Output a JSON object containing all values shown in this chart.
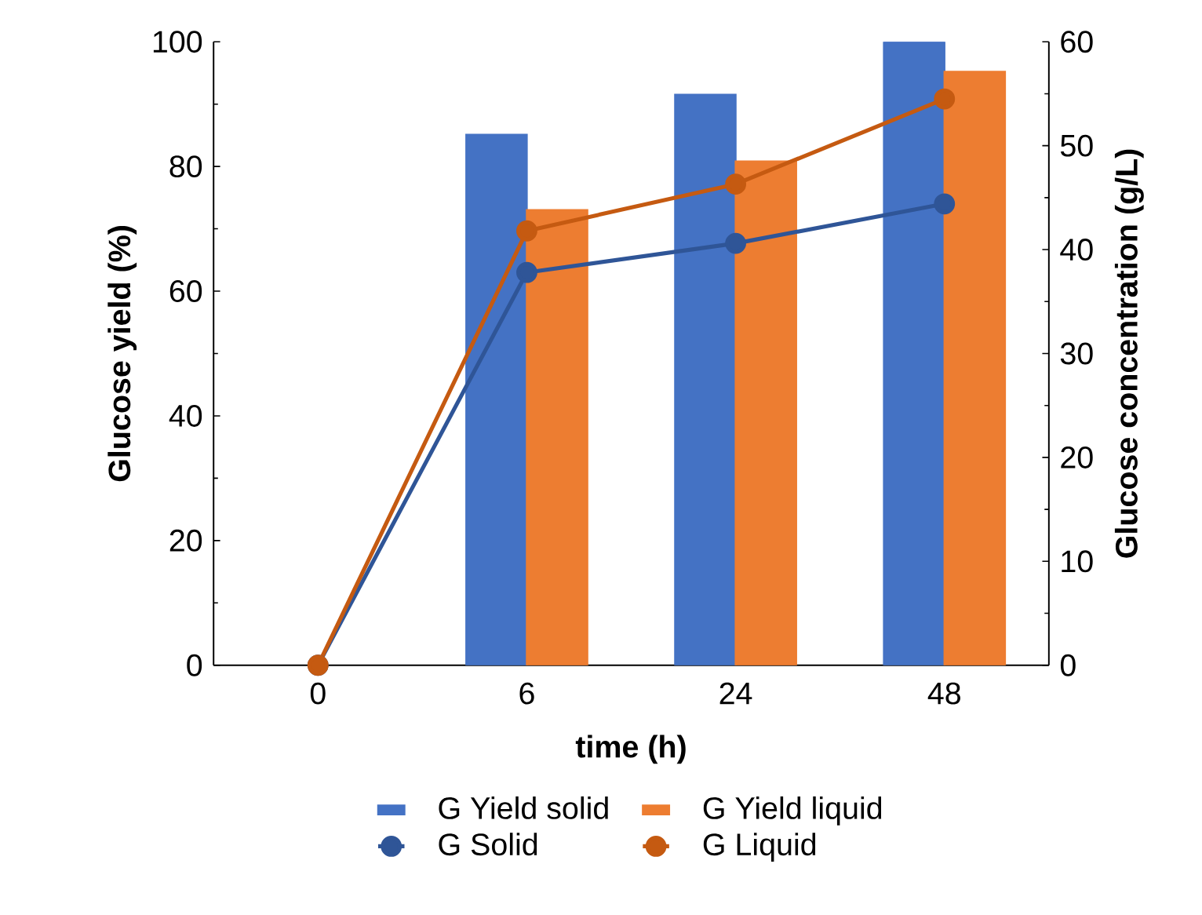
{
  "chart_data": {
    "type": "bar",
    "xlabel": "time (h)",
    "ylabel": "Glucose yield (%)",
    "y2label": "Glucose concentration (g/L)",
    "categories": [
      "0",
      "6",
      "24",
      "48"
    ],
    "series": [
      {
        "name": "G Yield solid",
        "color": "#4472c4",
        "values": [
          null,
          85.1,
          91.5,
          100
        ]
      },
      {
        "name": "G Yield liquid",
        "color": "#ed7d31",
        "values": [
          null,
          73,
          80.8,
          95.2
        ]
      },
      {
        "name": "G Solid",
        "type": "line",
        "axis": "y2",
        "color": "#2f5597",
        "values": [
          0,
          37.8,
          40.6,
          44.4
        ]
      },
      {
        "name": "G Liquid",
        "type": "line",
        "axis": "y2",
        "color": "#c55a11",
        "values": [
          0,
          41.8,
          46.3,
          54.5
        ]
      }
    ],
    "ylim": [
      0,
      100
    ],
    "yticks": [
      0,
      20,
      40,
      60,
      80,
      100
    ],
    "y2lim": [
      0,
      60
    ],
    "y2ticks": [
      0,
      10,
      20,
      30,
      40,
      50,
      60
    ],
    "legend": "bottom",
    "marker": "circle"
  }
}
